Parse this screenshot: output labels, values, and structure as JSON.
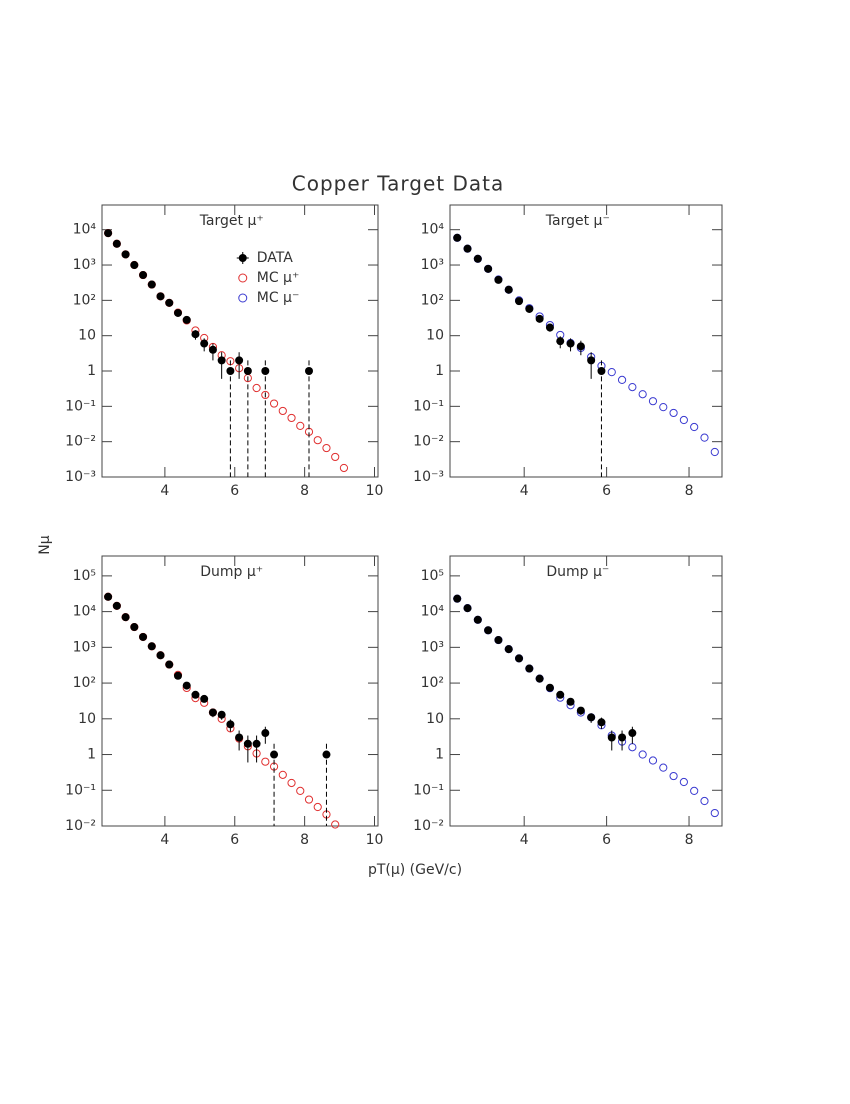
{
  "title": "Copper Target Data",
  "x_label": "pT(μ) (GeV/c)",
  "y_label": "Nμ",
  "legend": {
    "position": "upper right",
    "entries": [
      {
        "name": "DATA",
        "color": "#000000",
        "marker": "filled-circle"
      },
      {
        "name": "MC μ⁺",
        "color": "#e03030",
        "marker": "open-circle"
      },
      {
        "name": "MC μ⁻",
        "color": "#3a3ad0",
        "marker": "open-circle"
      }
    ]
  },
  "chart_data": [
    {
      "type": "scatter",
      "title": "Target μ⁺",
      "log_y": true,
      "xlim": [
        2.2,
        10.1
      ],
      "xticks": [
        4,
        6,
        8,
        10
      ],
      "ylim": [
        0.001,
        50000
      ],
      "yticks": [
        {
          "value": 0.001,
          "label": "10⁻³"
        },
        {
          "value": 0.01,
          "label": "10⁻²"
        },
        {
          "value": 0.1,
          "label": "10⁻¹"
        },
        1,
        10,
        {
          "value": 100,
          "label": "10²"
        },
        {
          "value": 1000,
          "label": "10³"
        },
        {
          "value": 10000,
          "label": "10⁴"
        }
      ],
      "series": [
        {
          "color": "#e03030",
          "marker": "open-circle",
          "x": [
            2.375,
            2.625,
            2.875,
            3.125,
            3.375,
            3.625,
            3.875,
            4.125,
            4.375,
            4.625,
            4.875,
            5.125,
            5.375,
            5.625,
            5.875,
            6.125,
            6.375,
            6.625,
            6.875,
            7.125,
            7.375,
            7.625,
            7.875,
            8.125,
            8.375,
            8.625,
            8.875,
            9.125
          ],
          "values": [
            8000,
            4000,
            2000,
            1000,
            520,
            280,
            130,
            85,
            45,
            27,
            14,
            8.6,
            4.8,
            2.8,
            1.9,
            1.2,
            0.63,
            0.33,
            0.21,
            0.12,
            0.074,
            0.047,
            0.028,
            0.019,
            0.011,
            0.0066,
            0.0037,
            0.0018
          ]
        },
        {
          "color": "#000000",
          "marker": "filled-circle",
          "x": [
            2.375,
            2.625,
            2.875,
            3.125,
            3.375,
            3.625,
            3.875,
            4.125,
            4.375,
            4.625,
            4.875,
            5.125,
            5.375,
            5.625,
            5.875,
            6.125,
            6.375,
            6.875,
            8.125
          ],
          "values": [
            8000,
            4000,
            2000,
            1000,
            520,
            280,
            130,
            85,
            44,
            28,
            11,
            6,
            4,
            2,
            1,
            2,
            1,
            1,
            1
          ],
          "errors": [
            89,
            63,
            45,
            32,
            23,
            17,
            11,
            9.2,
            6.6,
            5.3,
            3.3,
            2.4,
            2,
            1.4,
            1,
            1.4,
            1,
            1,
            1
          ]
        }
      ]
    },
    {
      "type": "scatter",
      "title": "Target μ⁻",
      "log_y": true,
      "xlim": [
        2.2,
        8.8
      ],
      "xticks": [
        4,
        6,
        8
      ],
      "ylim": [
        0.001,
        50000
      ],
      "yticks": [
        {
          "value": 0.001,
          "label": "10⁻³"
        },
        {
          "value": 0.01,
          "label": "10⁻²"
        },
        {
          "value": 0.1,
          "label": "10⁻¹"
        },
        1,
        10,
        {
          "value": 100,
          "label": "10²"
        },
        {
          "value": 1000,
          "label": "10³"
        },
        {
          "value": 10000,
          "label": "10⁴"
        }
      ],
      "series": [
        {
          "color": "#3a3ad0",
          "marker": "open-circle",
          "x": [
            2.375,
            2.625,
            2.875,
            3.125,
            3.375,
            3.625,
            3.875,
            4.125,
            4.375,
            4.625,
            4.875,
            5.125,
            5.375,
            5.625,
            5.875,
            6.125,
            6.375,
            6.625,
            6.875,
            7.125,
            7.375,
            7.625,
            7.875,
            8.125,
            8.375,
            8.625
          ],
          "values": [
            5900,
            2900,
            1500,
            780,
            390,
            200,
            100,
            60,
            35,
            20,
            10.5,
            6.2,
            4.5,
            2.5,
            1.4,
            0.93,
            0.56,
            0.35,
            0.22,
            0.14,
            0.095,
            0.065,
            0.041,
            0.026,
            0.013,
            0.0051
          ]
        },
        {
          "color": "#000000",
          "marker": "filled-circle",
          "x": [
            2.375,
            2.625,
            2.875,
            3.125,
            3.375,
            3.625,
            3.875,
            4.125,
            4.375,
            4.625,
            4.875,
            5.125,
            5.375,
            5.625,
            5.875
          ],
          "values": [
            5900,
            2900,
            1500,
            780,
            380,
            200,
            95,
            57,
            30,
            17,
            7,
            6,
            5,
            2,
            1
          ],
          "errors": [
            77,
            54,
            39,
            28,
            19,
            14,
            9.7,
            7.5,
            5.5,
            4.1,
            2.6,
            2.4,
            2.2,
            1.4,
            1
          ]
        }
      ]
    },
    {
      "type": "scatter",
      "title": "Dump μ⁺",
      "log_y": true,
      "xlim": [
        2.2,
        10.1
      ],
      "xticks": [
        4,
        6,
        8,
        10
      ],
      "ylim": [
        0.01,
        360000
      ],
      "yticks": [
        {
          "value": 0.01,
          "label": "10⁻²"
        },
        {
          "value": 0.1,
          "label": "10⁻¹"
        },
        1,
        10,
        {
          "value": 100,
          "label": "10²"
        },
        {
          "value": 1000,
          "label": "10³"
        },
        {
          "value": 10000,
          "label": "10⁴"
        },
        {
          "value": 100000,
          "label": "10⁵"
        }
      ],
      "series": [
        {
          "color": "#e03030",
          "marker": "open-circle",
          "x": [
            2.375,
            2.625,
            2.875,
            3.125,
            3.375,
            3.625,
            3.875,
            4.125,
            4.375,
            4.625,
            4.875,
            5.125,
            5.375,
            5.625,
            5.875,
            6.125,
            6.375,
            6.625,
            6.875,
            7.125,
            7.375,
            7.625,
            7.875,
            8.125,
            8.375,
            8.625,
            8.875
          ],
          "values": [
            26000,
            14500,
            7000,
            3700,
            1950,
            1070,
            600,
            330,
            170,
            73,
            38,
            28,
            15,
            10,
            5.4,
            2.8,
            1.7,
            1.07,
            0.63,
            0.46,
            0.27,
            0.16,
            0.096,
            0.055,
            0.034,
            0.021,
            0.011
          ]
        },
        {
          "color": "#000000",
          "marker": "filled-circle",
          "x": [
            2.375,
            2.625,
            2.875,
            3.125,
            3.375,
            3.625,
            3.875,
            4.125,
            4.375,
            4.625,
            4.875,
            5.125,
            5.375,
            5.625,
            5.875,
            6.125,
            6.375,
            6.625,
            6.875,
            7.125,
            8.625
          ],
          "values": [
            26000,
            14500,
            7000,
            3700,
            1950,
            1070,
            600,
            330,
            160,
            85,
            47,
            36,
            15,
            13,
            7,
            3,
            2,
            2,
            4,
            1,
            1
          ],
          "errors": [
            161,
            120,
            84,
            61,
            44,
            33,
            24,
            18,
            13,
            9.2,
            6.9,
            6,
            3.9,
            3.6,
            2.6,
            1.7,
            1.4,
            1.4,
            2,
            1,
            1
          ]
        }
      ]
    },
    {
      "type": "scatter",
      "title": "Dump μ⁻",
      "log_y": true,
      "xlim": [
        2.2,
        8.8
      ],
      "xticks": [
        4,
        6,
        8
      ],
      "ylim": [
        0.01,
        360000
      ],
      "yticks": [
        {
          "value": 0.01,
          "label": "10⁻²"
        },
        {
          "value": 0.1,
          "label": "10⁻¹"
        },
        1,
        10,
        {
          "value": 100,
          "label": "10²"
        },
        {
          "value": 1000,
          "label": "10³"
        },
        {
          "value": 10000,
          "label": "10⁴"
        },
        {
          "value": 100000,
          "label": "10⁵"
        }
      ],
      "series": [
        {
          "color": "#3a3ad0",
          "marker": "open-circle",
          "x": [
            2.375,
            2.625,
            2.875,
            3.125,
            3.375,
            3.625,
            3.875,
            4.125,
            4.375,
            4.625,
            4.875,
            5.125,
            5.375,
            5.625,
            5.875,
            6.125,
            6.375,
            6.625,
            6.875,
            7.125,
            7.375,
            7.625,
            7.875,
            8.125,
            8.375,
            8.625
          ],
          "values": [
            23000,
            12500,
            5900,
            3000,
            1600,
            890,
            490,
            255,
            133,
            72,
            39,
            24,
            15,
            11,
            6.6,
            3.4,
            2.3,
            1.6,
            1,
            0.68,
            0.43,
            0.25,
            0.17,
            0.096,
            0.05,
            0.023
          ]
        },
        {
          "color": "#000000",
          "marker": "filled-circle",
          "x": [
            2.375,
            2.625,
            2.875,
            3.125,
            3.375,
            3.625,
            3.875,
            4.125,
            4.375,
            4.625,
            4.875,
            5.125,
            5.375,
            5.625,
            5.875,
            6.125,
            6.375,
            6.625
          ],
          "values": [
            23000,
            12500,
            5900,
            3000,
            1600,
            890,
            490,
            255,
            133,
            74,
            47,
            30,
            17,
            11,
            8,
            3,
            3,
            4
          ],
          "errors": [
            152,
            112,
            77,
            55,
            40,
            30,
            22,
            16,
            12,
            8.6,
            6.9,
            5.5,
            4.1,
            3.3,
            2.8,
            1.7,
            1.7,
            2
          ]
        }
      ]
    }
  ]
}
